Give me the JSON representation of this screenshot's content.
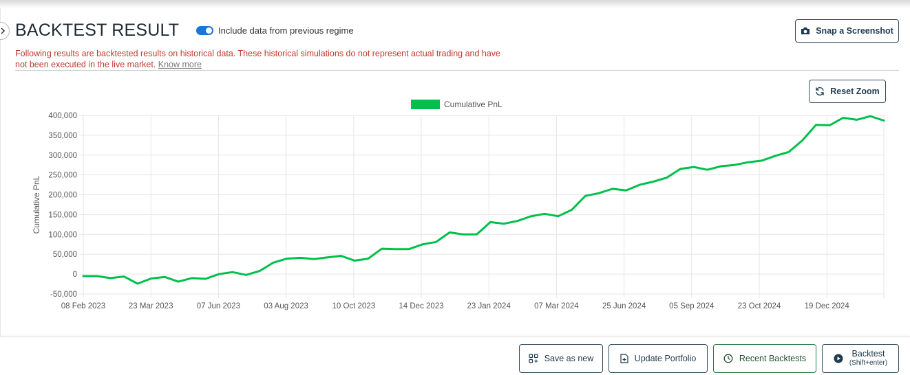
{
  "header": {
    "title": "BACKTEST RESULT",
    "regime_toggle": {
      "label": "Include data from previous regime",
      "checked": true
    },
    "warning_text": "Following results are backtested results on historical data. These historical simulations do not represent actual trading and have not been executed in the live market. ",
    "know_more": "Know more",
    "snap_button": {
      "label": "Snap a Screenshot",
      "icon": "camera-icon"
    }
  },
  "chart_controls": {
    "reset_zoom": {
      "label": "Reset Zoom",
      "icon": "refresh-icon"
    }
  },
  "colors": {
    "line": "#00c04b",
    "warning": "#c0392b",
    "toggle": "#1976d2",
    "button_border": "#2e4a5c"
  },
  "chart_data": {
    "type": "line",
    "title": "",
    "xlabel": "",
    "ylabel": "Cumulative PnL",
    "legend": {
      "position": "top-center",
      "entries": [
        "Cumulative PnL"
      ]
    },
    "ylim": [
      -50000,
      400000
    ],
    "y_ticks": [
      "400,000",
      "350,000",
      "300,000",
      "250,000",
      "200,000",
      "150,000",
      "100,000",
      "50,000",
      "0",
      "-50,000"
    ],
    "x_ticks": [
      "08 Feb 2023",
      "23 Mar 2023",
      "07 Jun 2023",
      "03 Aug 2023",
      "10 Oct 2023",
      "14 Dec 2023",
      "23 Jan 2024",
      "07 Mar 2024",
      "25 Jun 2024",
      "05 Sep 2024",
      "23 Oct 2024",
      "19 Dec 2024"
    ],
    "grid": true,
    "series": [
      {
        "name": "Cumulative PnL",
        "values": [
          -5000,
          -5000,
          -10000,
          -6000,
          -24000,
          -11000,
          -7000,
          -19000,
          -10000,
          -12000,
          0,
          5000,
          -2000,
          8000,
          29000,
          39000,
          41000,
          38000,
          42000,
          46000,
          34000,
          39000,
          64000,
          63000,
          63000,
          75000,
          81000,
          105000,
          100000,
          100000,
          131000,
          127000,
          134000,
          146000,
          152000,
          146000,
          162000,
          197000,
          204000,
          215000,
          211000,
          225000,
          233000,
          243000,
          265000,
          270000,
          263000,
          272000,
          275000,
          282000,
          286000,
          298000,
          308000,
          337000,
          376000,
          375000,
          394000,
          389000,
          398000,
          387000
        ]
      }
    ]
  },
  "footer": {
    "save_as_new": {
      "label": "Save as new",
      "icon": "grid-plus-icon"
    },
    "update_portfolio": {
      "label": "Update Portfolio",
      "icon": "file-plus-icon"
    },
    "recent_backtests": {
      "label": "Recent Backtests",
      "icon": "clock-icon"
    },
    "backtest": {
      "label": "Backtest",
      "sub": "(Shift+enter)",
      "icon": "play-circle-icon"
    }
  }
}
